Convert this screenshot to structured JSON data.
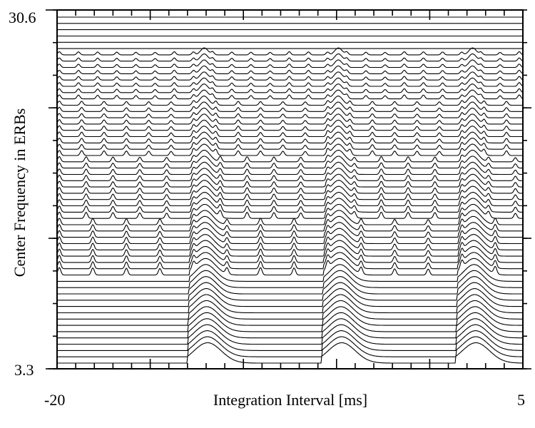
{
  "chart_data": {
    "type": "line",
    "title": "",
    "xlabel": "Integration Interval [ms]",
    "ylabel": "Center Frequency in ERBs",
    "xlim": [
      -20,
      5
    ],
    "ylim": [
      3.3,
      30.6
    ],
    "x_tick_labels": [
      "-20",
      "5"
    ],
    "y_tick_labels": [
      "30.6",
      "3.3"
    ],
    "x_ticks_major": [
      -20,
      -15,
      -10,
      -5,
      0,
      5
    ],
    "x_ticks_minor_step": 1,
    "channel_count": 56,
    "channel_spacing_erb": 0.5,
    "period_ms": 7.2,
    "main_pulse_ms": [
      -12.8,
      -5.6,
      1.6
    ],
    "grid": false,
    "legend": "none",
    "description_series": "stacked auditory-image traces, one baseline per filter channel, with pulse peaks recurring every period"
  }
}
